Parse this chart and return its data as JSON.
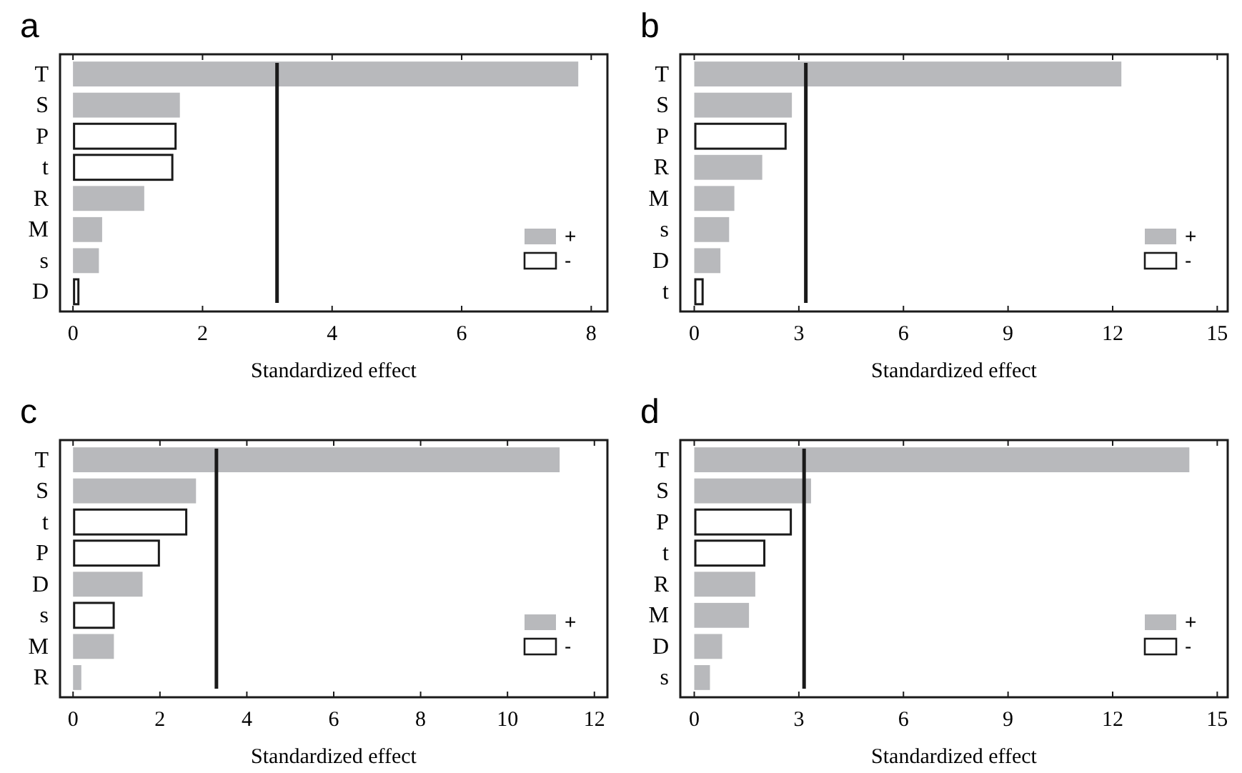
{
  "chart_data": [
    {
      "type": "bar",
      "orientation": "horizontal",
      "title": "a",
      "xlabel": "Standardized effect",
      "categories": [
        "T",
        "S",
        "P",
        "t",
        "R",
        "M",
        "s",
        "D"
      ],
      "series": [
        {
          "name": "+",
          "color": "#b8b9bc",
          "values": [
            7.8,
            1.65,
            null,
            null,
            1.1,
            0.45,
            0.4,
            null
          ]
        },
        {
          "name": "-",
          "color": "#ffffff",
          "values": [
            null,
            null,
            1.6,
            1.55,
            null,
            null,
            null,
            0.1
          ]
        }
      ],
      "xlim": [
        -0.2,
        8.25
      ],
      "xticks": [
        0,
        2,
        4,
        6,
        8
      ],
      "ref_lines": [
        {
          "axis": "x",
          "value": 3.15,
          "color": "#1a1a1a"
        }
      ],
      "legend": "bottom right"
    },
    {
      "type": "bar",
      "orientation": "horizontal",
      "title": "b",
      "xlabel": "Standardized effect",
      "categories": [
        "T",
        "S",
        "P",
        "R",
        "M",
        "s",
        "D",
        "t"
      ],
      "series": [
        {
          "name": "+",
          "color": "#b8b9bc",
          "values": [
            12.25,
            2.8,
            null,
            1.95,
            1.15,
            1.0,
            0.75,
            null
          ]
        },
        {
          "name": "-",
          "color": "#ffffff",
          "values": [
            null,
            null,
            2.65,
            null,
            null,
            null,
            null,
            0.27
          ]
        }
      ],
      "xlim": [
        -0.4,
        15.3
      ],
      "xticks": [
        0,
        3,
        6,
        9,
        12,
        15
      ],
      "ref_lines": [
        {
          "axis": "x",
          "value": 3.2,
          "color": "#1a1a1a"
        }
      ],
      "legend": "bottom right"
    },
    {
      "type": "bar",
      "orientation": "horizontal",
      "title": "c",
      "xlabel": "Standardized effect",
      "categories": [
        "T",
        "S",
        "t",
        "P",
        "D",
        "s",
        "M",
        "R"
      ],
      "series": [
        {
          "name": "+",
          "color": "#b8b9bc",
          "values": [
            11.2,
            2.83,
            null,
            null,
            1.6,
            null,
            0.94,
            0.19
          ]
        },
        {
          "name": "-",
          "color": "#ffffff",
          "values": [
            null,
            null,
            2.63,
            2.0,
            null,
            0.96,
            null,
            null
          ]
        }
      ],
      "xlim": [
        -0.3,
        12.3
      ],
      "xticks": [
        0,
        2,
        4,
        6,
        8,
        10,
        12
      ],
      "ref_lines": [
        {
          "axis": "x",
          "value": 3.3,
          "color": "#1a1a1a"
        }
      ],
      "legend": "bottom right"
    },
    {
      "type": "bar",
      "orientation": "horizontal",
      "title": "d",
      "xlabel": "Standardized effect",
      "categories": [
        "T",
        "S",
        "P",
        "t",
        "R",
        "M",
        "D",
        "s"
      ],
      "series": [
        {
          "name": "+",
          "color": "#b8b9bc",
          "values": [
            14.2,
            3.35,
            null,
            null,
            1.75,
            1.57,
            0.8,
            0.45
          ]
        },
        {
          "name": "-",
          "color": "#ffffff",
          "values": [
            null,
            null,
            2.8,
            2.04,
            null,
            null,
            null,
            null
          ]
        }
      ],
      "xlim": [
        -0.4,
        15.3
      ],
      "xticks": [
        0,
        3,
        6,
        9,
        12,
        15
      ],
      "ref_lines": [
        {
          "axis": "x",
          "value": 3.15,
          "color": "#1a1a1a"
        }
      ],
      "legend": "bottom right"
    }
  ]
}
